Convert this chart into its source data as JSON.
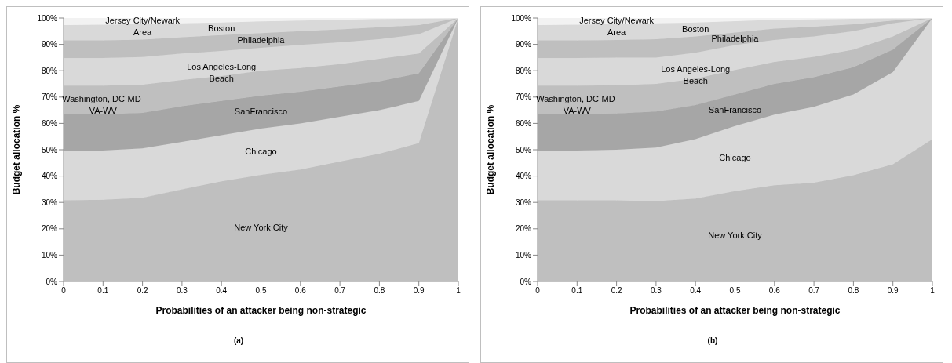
{
  "chart_data": [
    {
      "type": "area",
      "stacked": true,
      "xlabel": "Probabilities of an attacker being non-strategic",
      "ylabel": "Budget allocation %",
      "annotations": [
        "(a)"
      ],
      "x": [
        0,
        0.1,
        0.2,
        0.3,
        0.4,
        0.5,
        0.6,
        0.7,
        0.8,
        0.9,
        1
      ],
      "xlim": [
        0,
        1
      ],
      "xticks": [
        0,
        0.1,
        0.2,
        0.3,
        0.4,
        0.5,
        0.6,
        0.7,
        0.8,
        0.9,
        1
      ],
      "ylim": [
        0,
        100
      ],
      "yticks": [
        {
          "value": 0,
          "label": "0%"
        },
        {
          "value": 10,
          "label": "10%"
        },
        {
          "value": 20,
          "label": "20%"
        },
        {
          "value": 30,
          "label": "30%"
        },
        {
          "value": 40,
          "label": "40%"
        },
        {
          "value": 50,
          "label": "50%"
        },
        {
          "value": 60,
          "label": "60%"
        },
        {
          "value": 70,
          "label": "70%"
        },
        {
          "value": 80,
          "label": "80%"
        },
        {
          "value": 90,
          "label": "90%"
        },
        {
          "value": 100,
          "label": "100%"
        }
      ],
      "grid": false,
      "legend": false,
      "series": [
        {
          "name": "New York City",
          "color": "#bfbfbf",
          "values": [
            30.8,
            31,
            31.8,
            35,
            38,
            40.5,
            42.5,
            45.5,
            48.5,
            52.5,
            100
          ]
        },
        {
          "name": "Chicago",
          "color": "#d9d9d9",
          "values": [
            18.9,
            18.7,
            18.7,
            18,
            17.5,
            17.5,
            17.5,
            17,
            16.5,
            16,
            0
          ]
        },
        {
          "name": "SanFrancisco",
          "color": "#a6a6a6",
          "values": [
            13.8,
            13.8,
            13.5,
            13.5,
            13,
            12.5,
            12,
            11.5,
            11,
            10.5,
            0
          ]
        },
        {
          "name": "Washington, DC-MD-VA-WV",
          "color": "#bfbfbf",
          "values": [
            10.8,
            10.8,
            10.7,
            10,
            9.5,
            9.5,
            9,
            8.5,
            8.5,
            7.5,
            0
          ]
        },
        {
          "name": "Los Angeles-Long Beach",
          "color": "#d9d9d9",
          "values": [
            10.5,
            10.5,
            10.5,
            10,
            9.5,
            8.7,
            8.8,
            8.3,
            7.5,
            7.3,
            0
          ]
        },
        {
          "name": "Philadelphia",
          "color": "#bfbfbf",
          "values": [
            6.7,
            6.7,
            6.6,
            6.2,
            6,
            5.6,
            5.2,
            4.9,
            4.5,
            3.5,
            0
          ]
        },
        {
          "name": "Boston",
          "color": "#d9d9d9",
          "values": [
            5.8,
            6,
            5.9,
            5.3,
            4.8,
            4.4,
            4,
            3.6,
            3.1,
            2.5,
            0
          ]
        },
        {
          "name": "Jersey City/Newark Area",
          "color": "#f2f2f2",
          "values": [
            2.7,
            2.5,
            2.3,
            2,
            1.7,
            1.3,
            1,
            0.7,
            0.4,
            0.2,
            0
          ]
        }
      ]
    },
    {
      "type": "area",
      "stacked": true,
      "xlabel": "Probabilities of an attacker being non-strategic",
      "ylabel": "Budget allocation %",
      "annotations": [
        "(b)"
      ],
      "x": [
        0,
        0.1,
        0.2,
        0.3,
        0.4,
        0.5,
        0.6,
        0.7,
        0.8,
        0.9,
        1
      ],
      "xlim": [
        0,
        1
      ],
      "xticks": [
        0,
        0.1,
        0.2,
        0.3,
        0.4,
        0.5,
        0.6,
        0.7,
        0.8,
        0.9,
        1
      ],
      "ylim": [
        0,
        100
      ],
      "yticks": [
        {
          "value": 0,
          "label": "0%"
        },
        {
          "value": 10,
          "label": "10%"
        },
        {
          "value": 20,
          "label": "20%"
        },
        {
          "value": 30,
          "label": "30%"
        },
        {
          "value": 40,
          "label": "40%"
        },
        {
          "value": 50,
          "label": "50%"
        },
        {
          "value": 60,
          "label": "60%"
        },
        {
          "value": 70,
          "label": "70%"
        },
        {
          "value": 80,
          "label": "80%"
        },
        {
          "value": 90,
          "label": "90%"
        },
        {
          "value": 100,
          "label": "100%"
        }
      ],
      "grid": false,
      "legend": false,
      "series": [
        {
          "name": "New York City",
          "color": "#bfbfbf",
          "values": [
            30.8,
            30.8,
            30.8,
            30.5,
            31.5,
            34.3,
            36.5,
            37.5,
            40.3,
            44.5,
            54
          ]
        },
        {
          "name": "Chicago",
          "color": "#d9d9d9",
          "values": [
            18.9,
            18.9,
            19.2,
            20.3,
            22.5,
            24.7,
            26.8,
            28.8,
            30.7,
            35,
            46
          ]
        },
        {
          "name": "SanFrancisco",
          "color": "#a6a6a6",
          "values": [
            13.8,
            13.8,
            13.8,
            13.7,
            13,
            12,
            11.7,
            11.2,
            10.3,
            8.5,
            0
          ]
        },
        {
          "name": "Washington, DC-MD-VA-WV",
          "color": "#bfbfbf",
          "values": [
            10.8,
            10.8,
            10.7,
            10.5,
            10,
            9.3,
            8.3,
            7.8,
            6.7,
            5,
            0
          ]
        },
        {
          "name": "Los Angeles-Long Beach",
          "color": "#d9d9d9",
          "values": [
            10.5,
            10.5,
            10.5,
            10,
            9.8,
            9.4,
            8.4,
            7.7,
            7,
            5,
            0
          ]
        },
        {
          "name": "Philadelphia",
          "color": "#bfbfbf",
          "values": [
            6.7,
            6.7,
            6.7,
            7,
            6.2,
            4.8,
            4.3,
            3.7,
            2.6,
            1,
            0
          ]
        },
        {
          "name": "Boston",
          "color": "#d9d9d9",
          "values": [
            5.8,
            6,
            6,
            6,
            5.3,
            4.3,
            3.3,
            2.8,
            2.1,
            0.9,
            0
          ]
        },
        {
          "name": "Jersey City/Newark Area",
          "color": "#f2f2f2",
          "values": [
            2.7,
            2.5,
            2.3,
            2,
            1.7,
            1.2,
            0.7,
            0.5,
            0.3,
            0.1,
            0
          ]
        }
      ]
    }
  ]
}
